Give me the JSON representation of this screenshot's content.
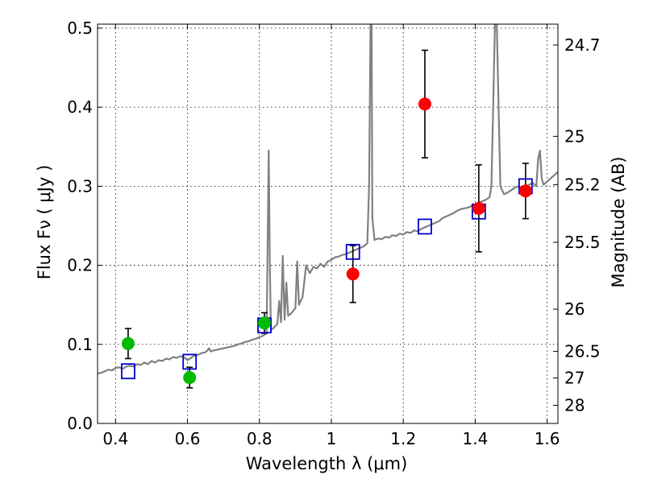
{
  "chart_data": {
    "type": "scatter",
    "title": "",
    "xlabel": "Wavelength  λ (μm)",
    "ylabel": "Flux  Fν  ( μJy )",
    "ylabel_right": "Magnitude (AB)",
    "xlim": [
      0.35,
      1.63
    ],
    "ylim": [
      0.0,
      0.505
    ],
    "grid": true,
    "x_ticks": [
      {
        "value": 0.4,
        "label": "0.4"
      },
      {
        "value": 0.6,
        "label": "0.6"
      },
      {
        "value": 0.8,
        "label": "0.8"
      },
      {
        "value": 1.0,
        "label": "1"
      },
      {
        "value": 1.2,
        "label": "1.2"
      },
      {
        "value": 1.4,
        "label": "1.4"
      },
      {
        "value": 1.6,
        "label": "1.6"
      }
    ],
    "y_ticks": [
      {
        "value": 0.0,
        "label": "0.0"
      },
      {
        "value": 0.1,
        "label": "0.1"
      },
      {
        "value": 0.2,
        "label": "0.2"
      },
      {
        "value": 0.3,
        "label": "0.3"
      },
      {
        "value": 0.4,
        "label": "0.4"
      },
      {
        "value": 0.5,
        "label": "0.5"
      }
    ],
    "right_ticks": [
      {
        "flux": 0.4786,
        "label": "24.7"
      },
      {
        "flux": 0.3631,
        "label": "25"
      },
      {
        "flux": 0.302,
        "label": "25.2"
      },
      {
        "flux": 0.2291,
        "label": "25.5"
      },
      {
        "flux": 0.1445,
        "label": "26"
      },
      {
        "flux": 0.0912,
        "label": "26.5"
      },
      {
        "flux": 0.0575,
        "label": "27"
      },
      {
        "flux": 0.0229,
        "label": "28"
      }
    ],
    "series": [
      {
        "kind": "model-spectrum",
        "color": "#808080",
        "points": [
          [
            0.35,
            0.063
          ],
          [
            0.36,
            0.064
          ],
          [
            0.37,
            0.066
          ],
          [
            0.38,
            0.068
          ],
          [
            0.39,
            0.067
          ],
          [
            0.4,
            0.07
          ],
          [
            0.41,
            0.071
          ],
          [
            0.42,
            0.069
          ],
          [
            0.43,
            0.072
          ],
          [
            0.44,
            0.073
          ],
          [
            0.45,
            0.072
          ],
          [
            0.46,
            0.075
          ],
          [
            0.47,
            0.074
          ],
          [
            0.48,
            0.077
          ],
          [
            0.49,
            0.075
          ],
          [
            0.5,
            0.079
          ],
          [
            0.51,
            0.077
          ],
          [
            0.52,
            0.08
          ],
          [
            0.53,
            0.079
          ],
          [
            0.54,
            0.082
          ],
          [
            0.55,
            0.081
          ],
          [
            0.56,
            0.084
          ],
          [
            0.57,
            0.083
          ],
          [
            0.58,
            0.085
          ],
          [
            0.59,
            0.084
          ],
          [
            0.6,
            0.08
          ],
          [
            0.61,
            0.083
          ],
          [
            0.62,
            0.086
          ],
          [
            0.63,
            0.087
          ],
          [
            0.64,
            0.089
          ],
          [
            0.65,
            0.09
          ],
          [
            0.655,
            0.092
          ],
          [
            0.66,
            0.095
          ],
          [
            0.665,
            0.091
          ],
          [
            0.67,
            0.092
          ],
          [
            0.68,
            0.093
          ],
          [
            0.69,
            0.094
          ],
          [
            0.7,
            0.095
          ],
          [
            0.71,
            0.096
          ],
          [
            0.72,
            0.097
          ],
          [
            0.73,
            0.098
          ],
          [
            0.74,
            0.1
          ],
          [
            0.75,
            0.101
          ],
          [
            0.76,
            0.103
          ],
          [
            0.77,
            0.104
          ],
          [
            0.78,
            0.106
          ],
          [
            0.79,
            0.107
          ],
          [
            0.8,
            0.109
          ],
          [
            0.81,
            0.111
          ],
          [
            0.82,
            0.114
          ],
          [
            0.823,
            0.23
          ],
          [
            0.826,
            0.345
          ],
          [
            0.829,
            0.2
          ],
          [
            0.832,
            0.118
          ],
          [
            0.84,
            0.121
          ],
          [
            0.85,
            0.126
          ],
          [
            0.855,
            0.155
          ],
          [
            0.86,
            0.128
          ],
          [
            0.865,
            0.212
          ],
          [
            0.87,
            0.131
          ],
          [
            0.875,
            0.178
          ],
          [
            0.88,
            0.136
          ],
          [
            0.89,
            0.14
          ],
          [
            0.9,
            0.146
          ],
          [
            0.905,
            0.205
          ],
          [
            0.91,
            0.15
          ],
          [
            0.92,
            0.16
          ],
          [
            0.93,
            0.2
          ],
          [
            0.94,
            0.19
          ],
          [
            0.95,
            0.198
          ],
          [
            0.96,
            0.196
          ],
          [
            0.97,
            0.202
          ],
          [
            0.98,
            0.198
          ],
          [
            0.99,
            0.205
          ],
          [
            1.0,
            0.207
          ],
          [
            1.01,
            0.21
          ],
          [
            1.02,
            0.211
          ],
          [
            1.03,
            0.213
          ],
          [
            1.04,
            0.214
          ],
          [
            1.05,
            0.216
          ],
          [
            1.06,
            0.218
          ],
          [
            1.07,
            0.22
          ],
          [
            1.08,
            0.222
          ],
          [
            1.09,
            0.224
          ],
          [
            1.1,
            0.228
          ],
          [
            1.105,
            0.3
          ],
          [
            1.109,
            0.505
          ],
          [
            1.112,
            0.505
          ],
          [
            1.114,
            0.26
          ],
          [
            1.12,
            0.232
          ],
          [
            1.13,
            0.234
          ],
          [
            1.14,
            0.233
          ],
          [
            1.15,
            0.236
          ],
          [
            1.16,
            0.235
          ],
          [
            1.17,
            0.238
          ],
          [
            1.18,
            0.237
          ],
          [
            1.19,
            0.24
          ],
          [
            1.2,
            0.239
          ],
          [
            1.21,
            0.242
          ],
          [
            1.22,
            0.241
          ],
          [
            1.23,
            0.244
          ],
          [
            1.24,
            0.243
          ],
          [
            1.25,
            0.246
          ],
          [
            1.26,
            0.248
          ],
          [
            1.27,
            0.25
          ],
          [
            1.28,
            0.252
          ],
          [
            1.29,
            0.254
          ],
          [
            1.3,
            0.256
          ],
          [
            1.31,
            0.26
          ],
          [
            1.32,
            0.262
          ],
          [
            1.33,
            0.264
          ],
          [
            1.34,
            0.266
          ],
          [
            1.35,
            0.269
          ],
          [
            1.36,
            0.271
          ],
          [
            1.37,
            0.272
          ],
          [
            1.38,
            0.273
          ],
          [
            1.39,
            0.275
          ],
          [
            1.4,
            0.277
          ],
          [
            1.41,
            0.279
          ],
          [
            1.42,
            0.281
          ],
          [
            1.43,
            0.283
          ],
          [
            1.44,
            0.286
          ],
          [
            1.445,
            0.3
          ],
          [
            1.45,
            0.4
          ],
          [
            1.455,
            0.505
          ],
          [
            1.46,
            0.505
          ],
          [
            1.465,
            0.4
          ],
          [
            1.47,
            0.3
          ],
          [
            1.48,
            0.29
          ],
          [
            1.49,
            0.292
          ],
          [
            1.5,
            0.295
          ],
          [
            1.51,
            0.298
          ],
          [
            1.52,
            0.3
          ],
          [
            1.53,
            0.298
          ],
          [
            1.54,
            0.3
          ],
          [
            1.55,
            0.302
          ],
          [
            1.56,
            0.304
          ],
          [
            1.57,
            0.3
          ],
          [
            1.575,
            0.335
          ],
          [
            1.58,
            0.345
          ],
          [
            1.585,
            0.31
          ],
          [
            1.59,
            0.302
          ],
          [
            1.6,
            0.306
          ],
          [
            1.61,
            0.31
          ],
          [
            1.62,
            0.314
          ],
          [
            1.63,
            0.318
          ]
        ]
      },
      {
        "kind": "model-photometry",
        "marker": "open-square",
        "color": "#0000cc",
        "points": [
          [
            0.435,
            0.066
          ],
          [
            0.606,
            0.078
          ],
          [
            0.814,
            0.124
          ],
          [
            1.06,
            0.217
          ],
          [
            1.26,
            0.249
          ],
          [
            1.41,
            0.268
          ],
          [
            1.54,
            0.3
          ]
        ]
      },
      {
        "kind": "observed-optical",
        "marker": "filled-circle",
        "color": "#00bb00",
        "points": [
          {
            "x": 0.435,
            "y": 0.101,
            "err": 0.019
          },
          {
            "x": 0.606,
            "y": 0.058,
            "err": 0.013
          },
          {
            "x": 0.814,
            "y": 0.127,
            "err": 0.013
          }
        ]
      },
      {
        "kind": "observed-infrared",
        "marker": "filled-circle",
        "color": "#ff0000",
        "points": [
          {
            "x": 1.06,
            "y": 0.189,
            "err": 0.036
          },
          {
            "x": 1.26,
            "y": 0.404,
            "err": 0.068
          },
          {
            "x": 1.41,
            "y": 0.272,
            "err": 0.055
          },
          {
            "x": 1.54,
            "y": 0.294,
            "err": 0.035
          }
        ]
      }
    ]
  }
}
